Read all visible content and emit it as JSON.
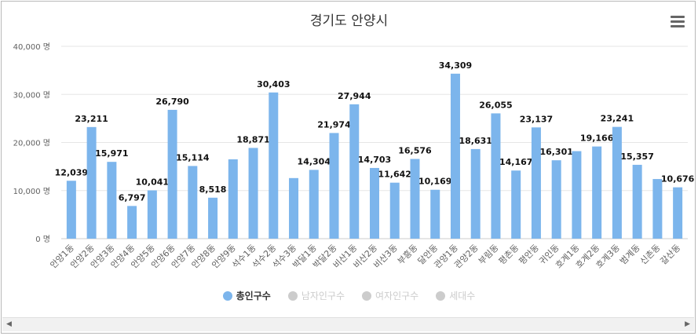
{
  "chart_data": {
    "type": "bar",
    "title": "경기도 안양시",
    "categories": [
      "안양1동",
      "안양2동",
      "안양3동",
      "안양4동",
      "안양5동",
      "안양6동",
      "안양7동",
      "안양8동",
      "안양9동",
      "석수1동",
      "석수2동",
      "석수3동",
      "박달1동",
      "박달2동",
      "비산1동",
      "비산2동",
      "비산3동",
      "부흥동",
      "달안동",
      "관양1동",
      "관양2동",
      "부림동",
      "평촌동",
      "평안동",
      "귀인동",
      "호계1동",
      "호계2동",
      "호계3동",
      "범계동",
      "신촌동",
      "갈산동"
    ],
    "series": [
      {
        "name": "총인구수",
        "values": [
          12039,
          23211,
          15971,
          6797,
          10041,
          26790,
          15114,
          8518,
          16500,
          18871,
          30403,
          12600,
          14304,
          21974,
          27944,
          14703,
          11642,
          16576,
          10169,
          34309,
          18631,
          26055,
          14167,
          23137,
          16301,
          18200,
          19166,
          23241,
          15357,
          12400,
          10676
        ],
        "labeled": [
          true,
          true,
          true,
          true,
          true,
          true,
          true,
          true,
          false,
          true,
          true,
          false,
          true,
          true,
          true,
          true,
          true,
          true,
          true,
          true,
          true,
          true,
          true,
          true,
          true,
          false,
          true,
          true,
          true,
          false,
          true
        ],
        "color": "#7cb5ec"
      }
    ],
    "yticks": [
      0,
      10000,
      20000,
      30000,
      40000
    ],
    "ytick_labels": [
      "0 명",
      "10,000 명",
      "20,000 명",
      "30,000 명",
      "40,000 명"
    ],
    "ylim": [
      0,
      40000
    ],
    "grid": true,
    "legend_position": "bottom-center"
  },
  "legend": [
    {
      "label": "총인구수",
      "color": "#7cb5ec",
      "active": true
    },
    {
      "label": "남자인구수",
      "color": "#cccccc",
      "active": false
    },
    {
      "label": "여자인구수",
      "color": "#cccccc",
      "active": false
    },
    {
      "label": "세대수",
      "color": "#cccccc",
      "active": false
    }
  ],
  "icons": {
    "menu": "hamburger-menu-icon",
    "scroll_left": "arrow-left-icon",
    "scroll_right": "arrow-right-icon"
  },
  "scroll": {
    "left": "◀",
    "right": "▶"
  }
}
